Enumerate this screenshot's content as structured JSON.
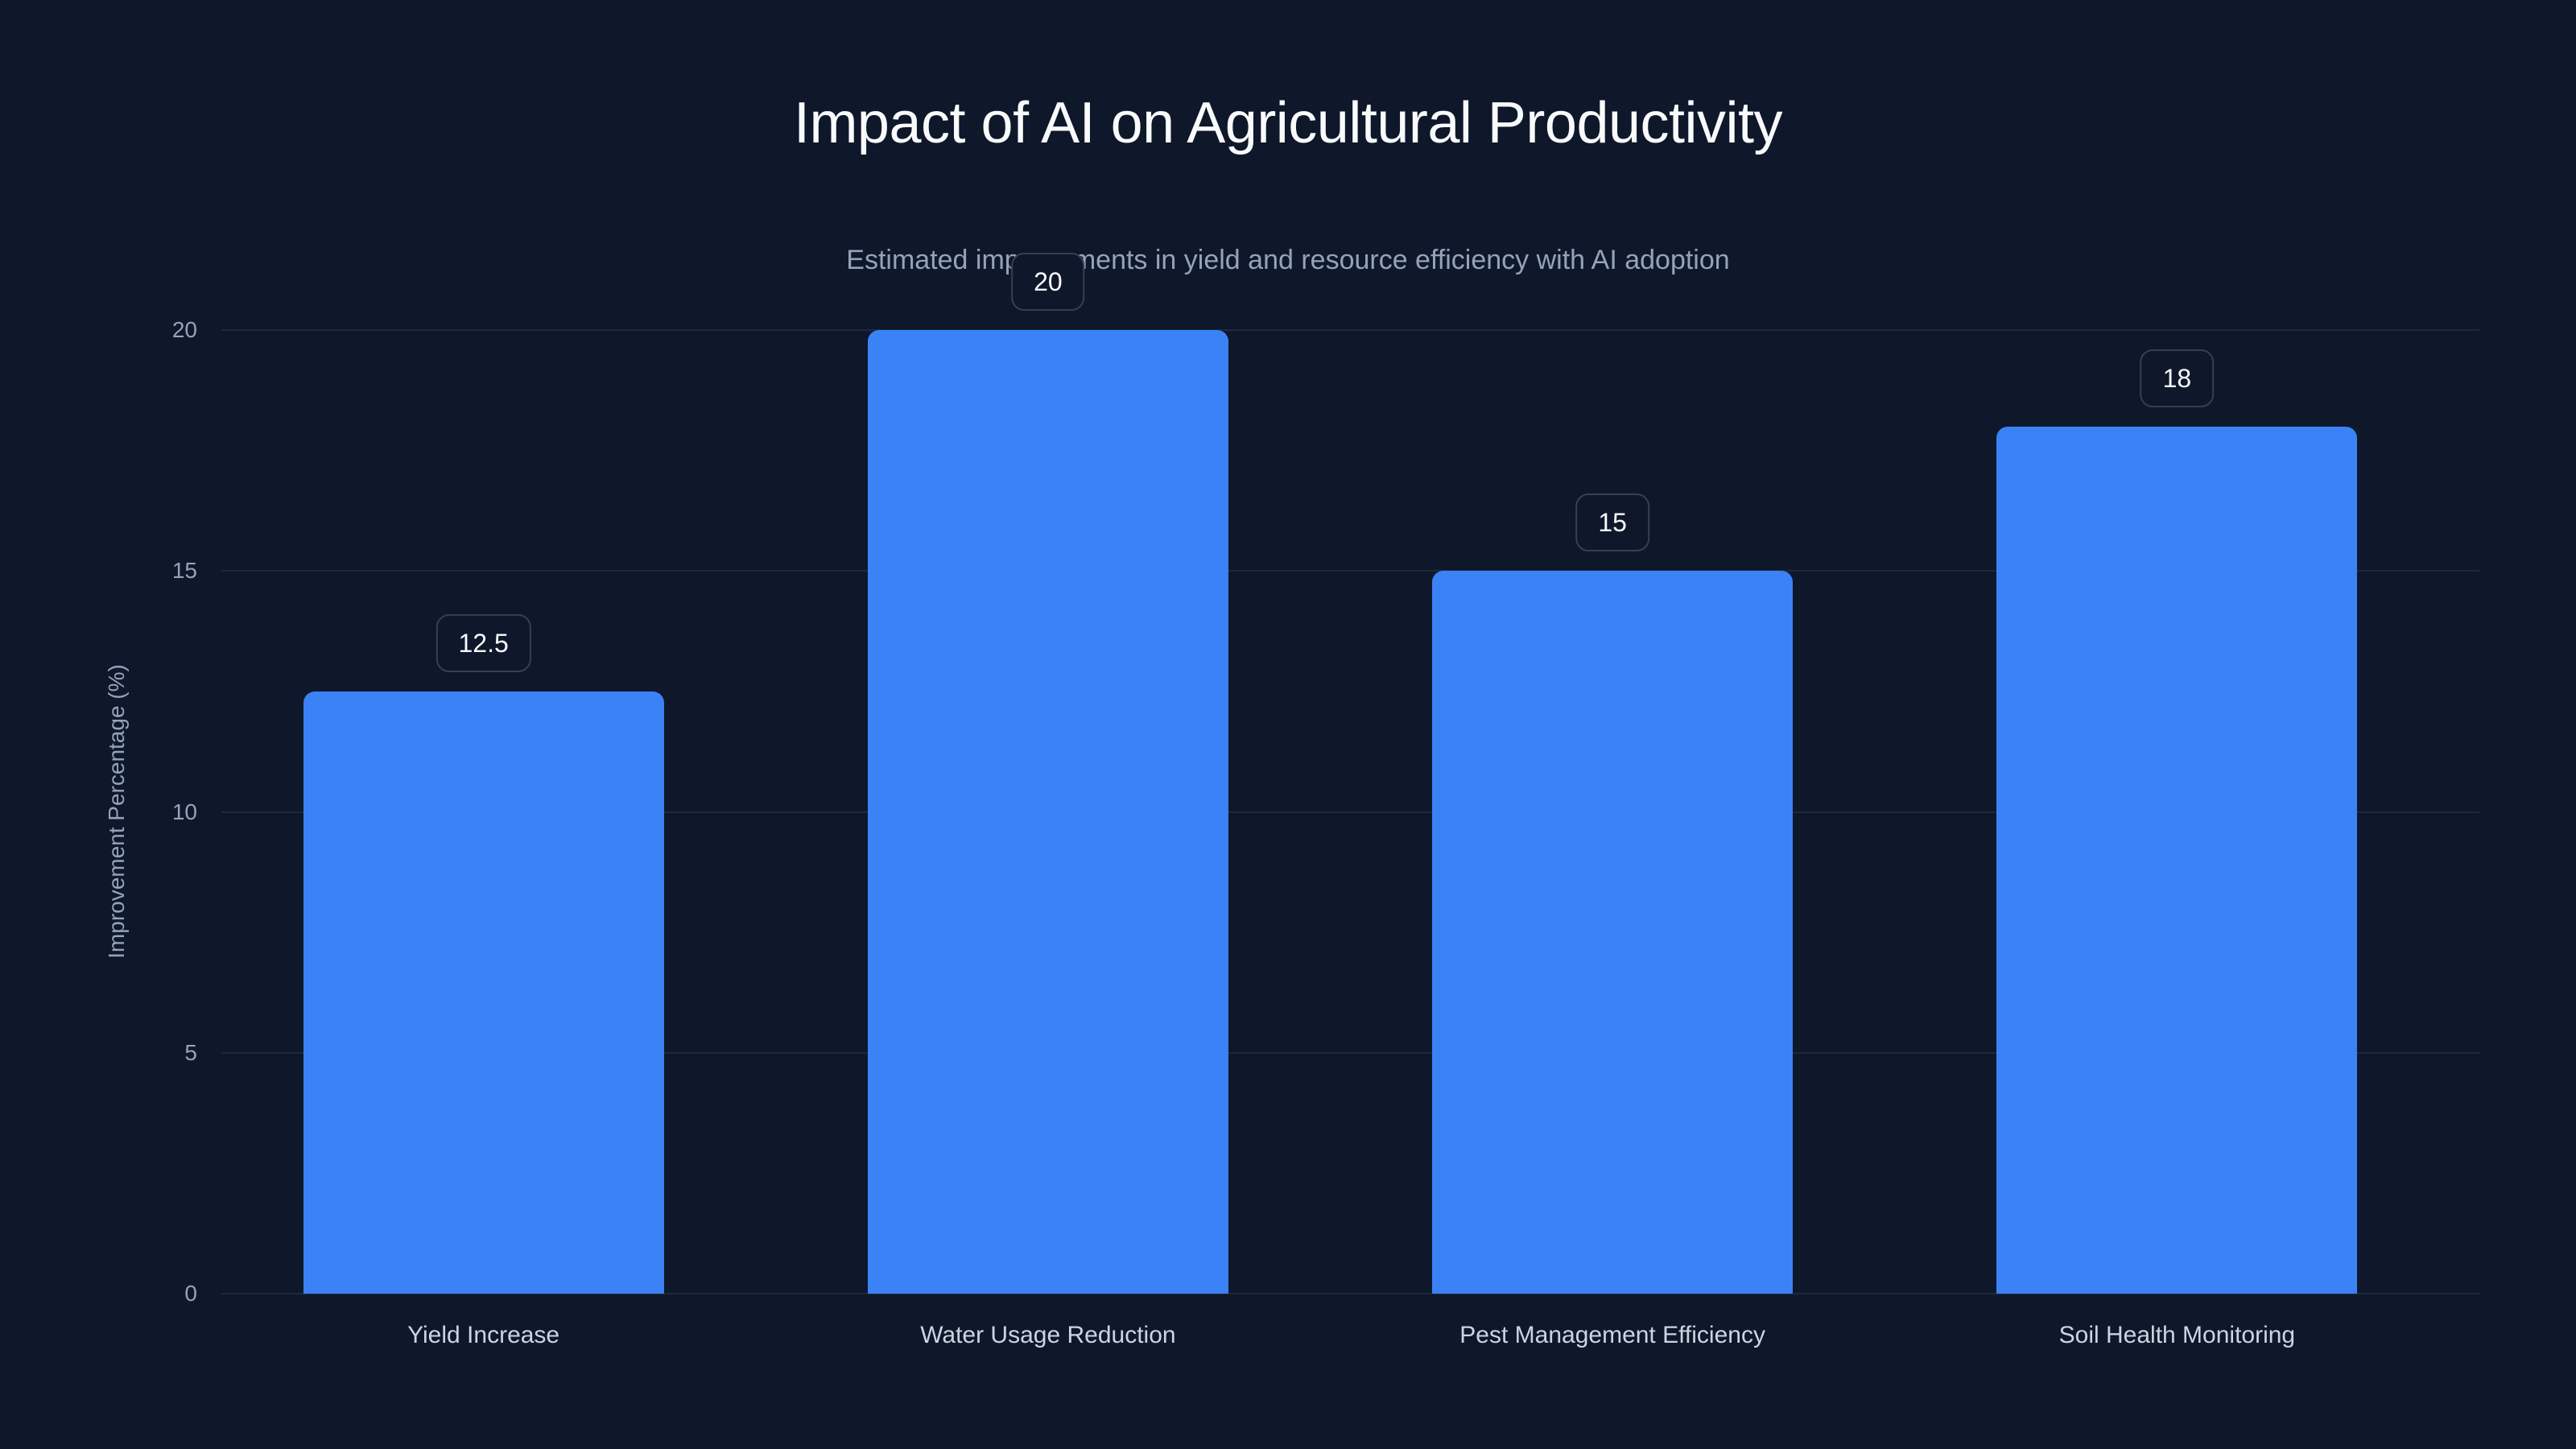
{
  "chart_data": {
    "type": "bar",
    "title": "Impact of AI on Agricultural Productivity",
    "subtitle": "Estimated improvements in yield and resource efficiency with AI adoption",
    "categories": [
      "Yield Increase",
      "Water Usage Reduction",
      "Pest Management Efficiency",
      "Soil Health Monitoring"
    ],
    "values": [
      12.5,
      20,
      15,
      18
    ],
    "value_labels": [
      "12.5",
      "20",
      "15",
      "18"
    ],
    "xlabel": "",
    "ylabel": "Improvement Percentage (%)",
    "ylim": [
      0,
      20
    ],
    "yticks": [
      "0",
      "5",
      "10",
      "15",
      "20"
    ],
    "grid": true,
    "legend": null,
    "colors": {
      "bar": "#3B82F6",
      "background": "#0F172A",
      "grid": "#1E293B"
    }
  }
}
